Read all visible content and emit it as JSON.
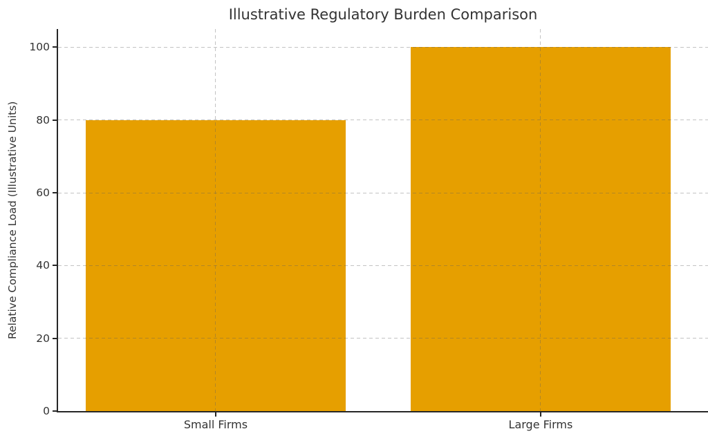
{
  "chart_data": {
    "type": "bar",
    "title": "Illustrative Regulatory Burden Comparison",
    "xlabel": "",
    "ylabel": "Relative Compliance Load (Illustrative Units)",
    "categories": [
      "Small Firms",
      "Large Firms"
    ],
    "values": [
      80,
      100
    ],
    "yticks": [
      0,
      20,
      40,
      60,
      80,
      100
    ],
    "ylim": [
      0,
      105
    ],
    "xlim": [
      -0.485,
      1.515
    ],
    "bar_width": 0.8,
    "legend": "none",
    "grid": "dashed gray, horizontal at yticks and vertical at category centers, drawn over bars",
    "colors": {
      "bar": "#E69F00",
      "spine": "#262626",
      "text": "#333333",
      "background": "#ffffff"
    }
  }
}
